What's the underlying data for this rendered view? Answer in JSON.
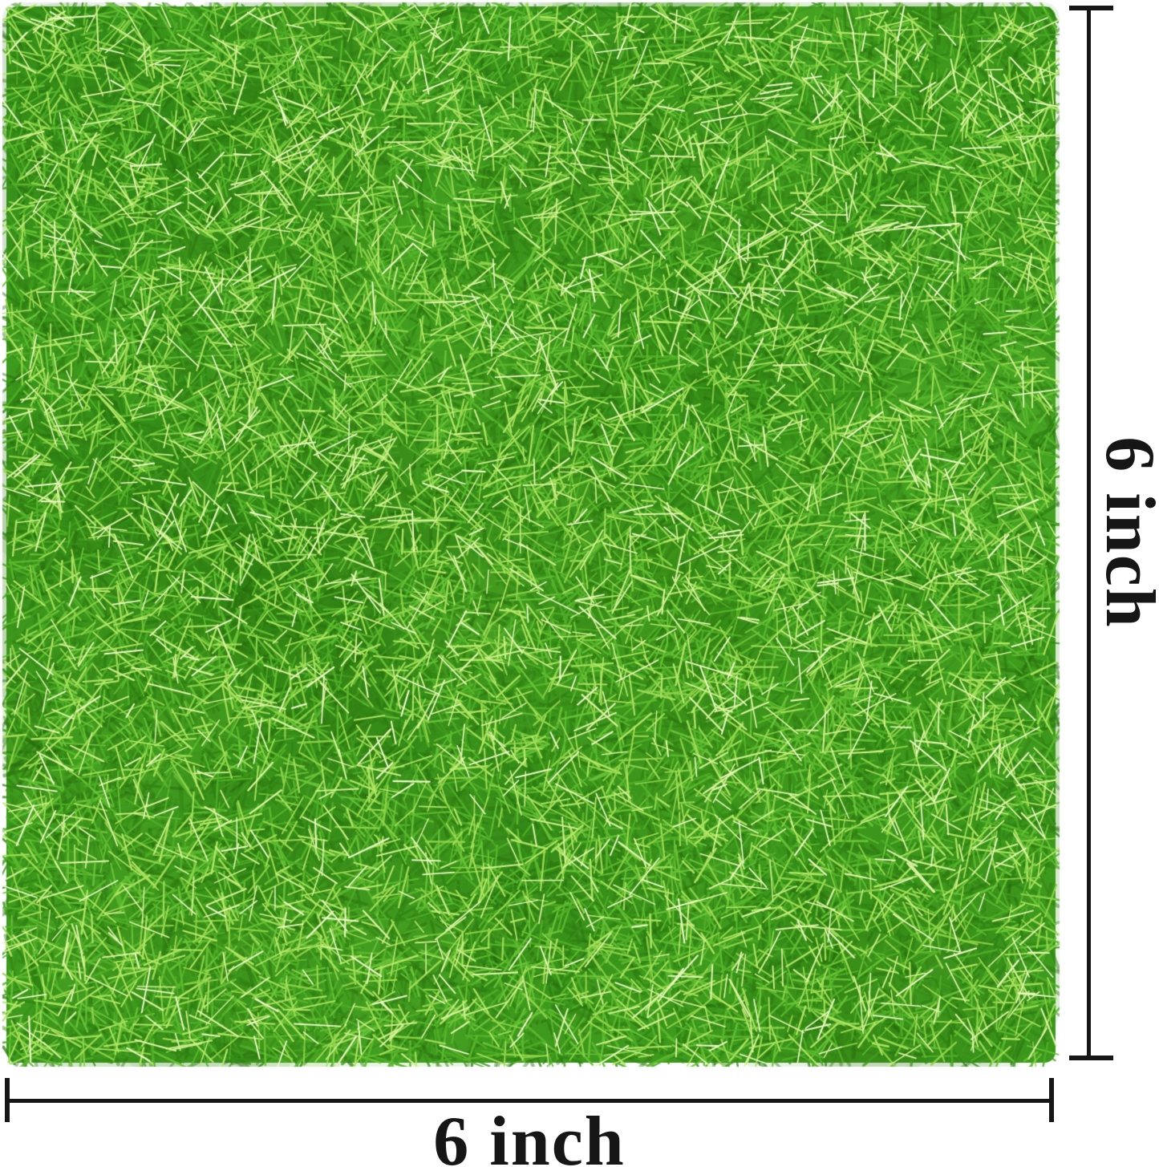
{
  "figure": {
    "description": "Artificial grass mat product photo with size dimension markings",
    "background_color": "#ffffff"
  },
  "grass_mat": {
    "name": "artificial-grass-mat",
    "base_color": "#3d9a1d",
    "blade_colors": {
      "shadow": [
        "#256b0c",
        "#2e7a11",
        "#357e15"
      ],
      "dark": [
        "#2f8414",
        "#38911a",
        "#429a20"
      ],
      "mid": [
        "#4fae27",
        "#5cb92e",
        "#6ac338"
      ],
      "light": [
        "#8ed34a",
        "#a3de58",
        "#b4e767"
      ],
      "highlight": [
        "#cdee8e",
        "#ddf3a6",
        "#ebf9c6"
      ]
    },
    "patch_colors": [
      "#2a730f",
      "#63bd33"
    ]
  },
  "dimensions": {
    "color": "#161616",
    "height": {
      "label": "6 inch"
    },
    "width": {
      "label": "6 inch"
    }
  }
}
